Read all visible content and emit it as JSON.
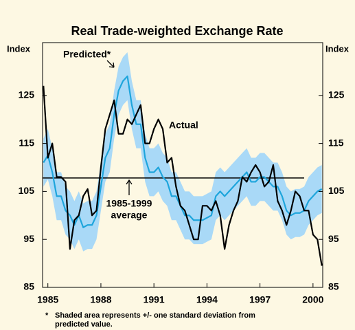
{
  "chart_data": {
    "type": "line",
    "title": "Real Trade-weighted Exchange Rate",
    "ylabel": "Index",
    "y2label": "Index",
    "xlim": [
      1984.7,
      2000.55
    ],
    "xticks": [
      1985,
      1988,
      1991,
      1994,
      1997,
      2000
    ],
    "ylim": [
      85,
      136
    ],
    "yticks": [
      85,
      95,
      105,
      115,
      125
    ],
    "y2lim": [
      85,
      136
    ],
    "y2ticks": [
      85,
      95,
      105,
      115,
      125
    ],
    "x": [
      1984.75,
      1985,
      1985.25,
      1985.5,
      1985.75,
      1986,
      1986.25,
      1986.5,
      1986.75,
      1987,
      1987.25,
      1987.5,
      1987.75,
      1988,
      1988.25,
      1988.5,
      1988.75,
      1989,
      1989.25,
      1989.5,
      1989.75,
      1990,
      1990.25,
      1990.5,
      1990.75,
      1991,
      1991.25,
      1991.5,
      1991.75,
      1992,
      1992.25,
      1992.5,
      1992.75,
      1993,
      1993.25,
      1993.5,
      1993.75,
      1994,
      1994.25,
      1994.5,
      1994.75,
      1995,
      1995.25,
      1995.5,
      1995.75,
      1996,
      1996.25,
      1996.5,
      1996.75,
      1997,
      1997.25,
      1997.5,
      1997.75,
      1998,
      1998.25,
      1998.5,
      1998.75,
      1999,
      1999.25,
      1999.5,
      1999.75,
      2000,
      2000.25,
      2000.5
    ],
    "band": {
      "color": "#a9d9f7",
      "upper": [
        116,
        118,
        114,
        109,
        109,
        106,
        105,
        103,
        105,
        102.5,
        103,
        103,
        105,
        111,
        117,
        119,
        126,
        131,
        133,
        134,
        128,
        124,
        124,
        117,
        114,
        114,
        115,
        113,
        112,
        109,
        109,
        107,
        105,
        105,
        104,
        104,
        104,
        104.5,
        105,
        109,
        110,
        109,
        110,
        111,
        112,
        113,
        114,
        112,
        112,
        113,
        113,
        112,
        111,
        111,
        109,
        106,
        105,
        105.5,
        105.5,
        106,
        108,
        109,
        110,
        110.5
      ],
      "lower": [
        106,
        107.5,
        104,
        99,
        99,
        96,
        95,
        93,
        95,
        92.5,
        93,
        93,
        95,
        101,
        107,
        109,
        116,
        121,
        123,
        124,
        118,
        114,
        114,
        107,
        104,
        104,
        105,
        103,
        102,
        99,
        99,
        97,
        95,
        95,
        94,
        94,
        94,
        94.5,
        95,
        99,
        100,
        99,
        100,
        101,
        102,
        103,
        104,
        102,
        102,
        103,
        103,
        102,
        101,
        101,
        99,
        96,
        95,
        95.5,
        95.5,
        96,
        98,
        99,
        100,
        100.5
      ]
    },
    "series": [
      {
        "name": "Predicted*",
        "color": "#1ea5dc",
        "values": [
          111,
          112.5,
          109,
          104,
          104,
          101,
          100,
          98,
          100,
          97.5,
          98,
          98,
          100,
          106,
          112,
          114,
          121,
          126,
          128,
          129,
          123,
          119,
          119,
          112,
          109,
          109,
          110,
          108,
          107,
          104,
          104,
          102,
          100,
          100,
          99,
          99,
          99,
          99.5,
          100,
          104,
          105,
          104,
          105,
          106,
          107,
          108,
          109,
          107,
          107,
          108,
          108,
          107,
          106,
          106,
          104,
          101,
          100,
          100.5,
          100.5,
          101,
          103,
          104,
          105,
          105.5
        ]
      },
      {
        "name": "Actual",
        "color": "#000000",
        "values": [
          127,
          112,
          115,
          108,
          108,
          107,
          93,
          99,
          100,
          104,
          105.5,
          100,
          101,
          110,
          118,
          121,
          124,
          117,
          117,
          120,
          119,
          121,
          123,
          115,
          115,
          118,
          120,
          118,
          111,
          112,
          106,
          102,
          101,
          98,
          95,
          95,
          102,
          102,
          101,
          103,
          100,
          93,
          98,
          101,
          103,
          108,
          107,
          109,
          110.5,
          109,
          106,
          107,
          110.5,
          103,
          101,
          98,
          101,
          105,
          104,
          101,
          101,
          96,
          95,
          89.5
        ]
      }
    ],
    "average": {
      "value": 107.8,
      "x": [
        1984.7,
        1999.5
      ],
      "label": [
        "1985-1999",
        "average"
      ]
    },
    "footnote": [
      "*",
      "Shaded area represents +/- one standard deviation from",
      "predicted value."
    ]
  }
}
